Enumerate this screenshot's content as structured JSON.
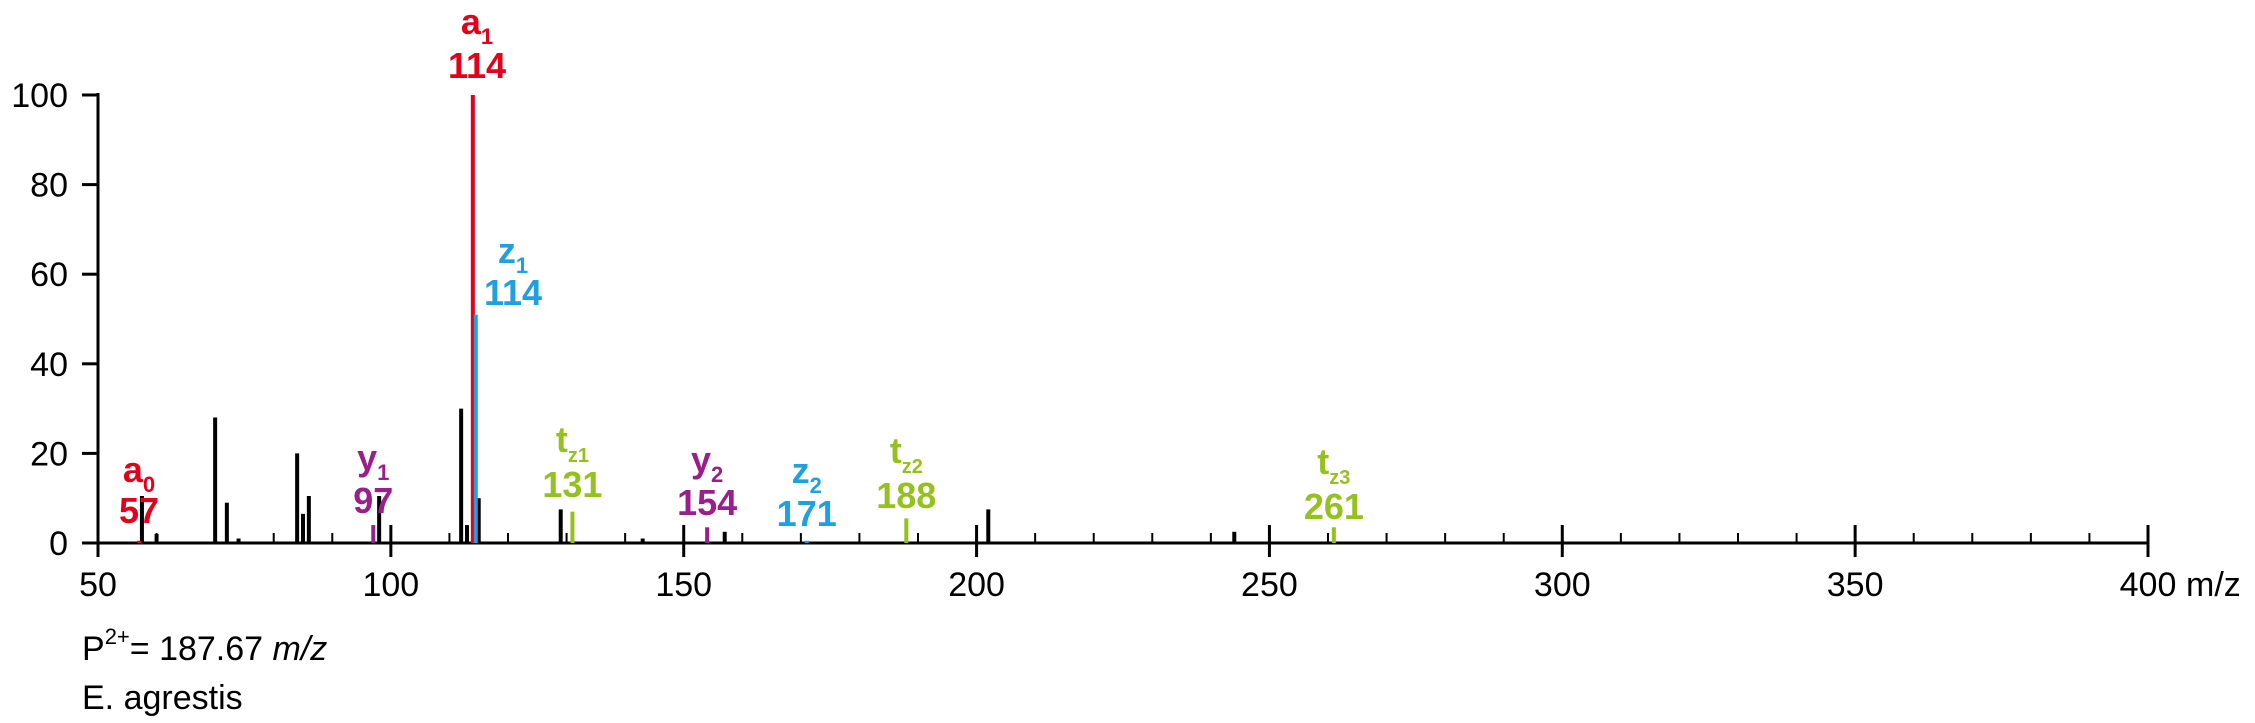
{
  "chart_data": {
    "type": "bar",
    "xlabel": "m/z",
    "ylabel": "",
    "xlim": [
      50,
      400
    ],
    "ylim": [
      0,
      100
    ],
    "x_ticks": [
      50,
      100,
      150,
      200,
      250,
      300,
      350,
      400
    ],
    "y_ticks": [
      0,
      20,
      40,
      60,
      80,
      100
    ],
    "x_minor_step": 10,
    "unannotated_peaks": [
      {
        "mz": 57.5,
        "intensity": 10.5
      },
      {
        "mz": 60,
        "intensity": 2
      },
      {
        "mz": 70,
        "intensity": 28
      },
      {
        "mz": 72,
        "intensity": 9
      },
      {
        "mz": 74,
        "intensity": 1
      },
      {
        "mz": 84,
        "intensity": 20
      },
      {
        "mz": 85,
        "intensity": 6.5
      },
      {
        "mz": 86,
        "intensity": 10.5
      },
      {
        "mz": 98,
        "intensity": 10.5
      },
      {
        "mz": 112,
        "intensity": 30
      },
      {
        "mz": 113,
        "intensity": 4
      },
      {
        "mz": 115,
        "intensity": 10
      },
      {
        "mz": 129,
        "intensity": 7.5
      },
      {
        "mz": 143,
        "intensity": 1
      },
      {
        "mz": 157,
        "intensity": 2.5
      },
      {
        "mz": 202,
        "intensity": 7.5
      },
      {
        "mz": 244,
        "intensity": 2.5
      }
    ],
    "annotated_peaks": [
      {
        "mz": 57,
        "intensity": 0.5,
        "ion": "a",
        "sub": "0",
        "label": "57",
        "color": "#e3001b"
      },
      {
        "mz": 114,
        "intensity": 100,
        "ion": "a",
        "sub": "1",
        "label": "114",
        "color": "#e3001b"
      },
      {
        "mz": 114.5,
        "intensity": 51,
        "ion": "z",
        "sub": "1",
        "label": "114",
        "color": "#1fa0e0"
      },
      {
        "mz": 97,
        "intensity": 4,
        "ion": "y",
        "sub": "1",
        "label": "97",
        "color": "#9b1f8a"
      },
      {
        "mz": 154,
        "intensity": 3.5,
        "ion": "y",
        "sub": "2",
        "label": "154",
        "color": "#9b1f8a"
      },
      {
        "mz": 171,
        "intensity": 0.5,
        "ion": "z",
        "sub": "2",
        "label": "171",
        "color": "#1fa0e0"
      },
      {
        "mz": 131,
        "intensity": 7,
        "ion": "t",
        "sub": "z1",
        "label": "131",
        "color": "#95c11f"
      },
      {
        "mz": 188,
        "intensity": 5.5,
        "ion": "t",
        "sub": "z2",
        "label": "188",
        "color": "#95c11f"
      },
      {
        "mz": 261,
        "intensity": 3.5,
        "ion": "t",
        "sub": "z3",
        "label": "261",
        "color": "#95c11f"
      }
    ]
  },
  "footer": {
    "precursor_prefix": "P",
    "precursor_charge": "2+",
    "precursor_value": "= 187.67 ",
    "precursor_unit": "m/z",
    "species": "E. agrestis"
  }
}
